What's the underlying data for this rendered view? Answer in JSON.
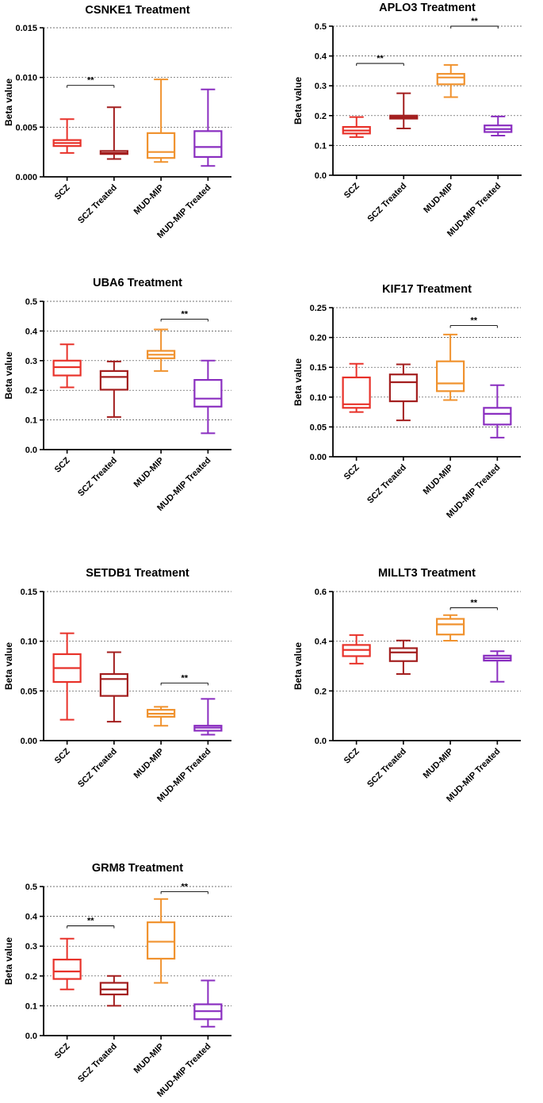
{
  "chart_data": [
    {
      "type": "boxplot",
      "title": "CSNKE1 Treatment",
      "ylabel": "Beta value",
      "ylim": [
        0,
        0.015
      ],
      "yticks": [
        "0.000",
        "0.005",
        "0.010",
        "0.015"
      ],
      "categories": [
        "SCZ",
        "SCZ Treated",
        "MUD-MIP",
        "MUD-MIP Treated"
      ],
      "colors": [
        "#e8322a",
        "#a31e1e",
        "#f0922e",
        "#8a2ec0"
      ],
      "boxes": [
        {
          "min": 0.0024,
          "q1": 0.0031,
          "median": 0.0034,
          "q3": 0.0037,
          "max": 0.0058
        },
        {
          "min": 0.0018,
          "q1": 0.0023,
          "median": 0.0024,
          "q3": 0.0026,
          "max": 0.007
        },
        {
          "min": 0.0015,
          "q1": 0.0019,
          "median": 0.0025,
          "q3": 0.0044,
          "max": 0.0098
        },
        {
          "min": 0.0011,
          "q1": 0.002,
          "median": 0.003,
          "q3": 0.0046,
          "max": 0.0088
        }
      ],
      "significance": [
        {
          "from": 0,
          "to": 1,
          "label": "**",
          "at": 0.0092
        }
      ]
    },
    {
      "type": "boxplot",
      "title": "APLO3 Treatment",
      "ylabel": "Beta value",
      "ylim": [
        0,
        0.5
      ],
      "yticks": [
        "0.0",
        "0.1",
        "0.2",
        "0.3",
        "0.4",
        "0.5"
      ],
      "categories": [
        "SCZ",
        "SCZ Treated",
        "MUD-MIP",
        "MUD-MIP Treated"
      ],
      "colors": [
        "#e8322a",
        "#a31e1e",
        "#f0922e",
        "#8a2ec0"
      ],
      "boxes": [
        {
          "min": 0.128,
          "q1": 0.14,
          "median": 0.15,
          "q3": 0.162,
          "max": 0.195
        },
        {
          "min": 0.157,
          "q1": 0.19,
          "median": 0.195,
          "q3": 0.2,
          "max": 0.275
        },
        {
          "min": 0.262,
          "q1": 0.305,
          "median": 0.328,
          "q3": 0.34,
          "max": 0.37
        },
        {
          "min": 0.133,
          "q1": 0.145,
          "median": 0.155,
          "q3": 0.167,
          "max": 0.197
        }
      ],
      "significance": [
        {
          "from": 0,
          "to": 1,
          "label": "**",
          "at": 0.375
        },
        {
          "from": 2,
          "to": 3,
          "label": "**",
          "at": 0.5
        }
      ]
    },
    {
      "type": "boxplot",
      "title": "UBA6 Treatment",
      "ylabel": "Beta value",
      "ylim": [
        0,
        0.5
      ],
      "yticks": [
        "0.0",
        "0.1",
        "0.2",
        "0.3",
        "0.4",
        "0.5"
      ],
      "categories": [
        "SCZ",
        "SCZ Treated",
        "MUD-MIP",
        "MUD-MIP Treated"
      ],
      "colors": [
        "#e8322a",
        "#a31e1e",
        "#f0922e",
        "#8a2ec0"
      ],
      "boxes": [
        {
          "min": 0.21,
          "q1": 0.25,
          "median": 0.278,
          "q3": 0.3,
          "max": 0.355
        },
        {
          "min": 0.11,
          "q1": 0.202,
          "median": 0.245,
          "q3": 0.265,
          "max": 0.297
        },
        {
          "min": 0.265,
          "q1": 0.308,
          "median": 0.32,
          "q3": 0.333,
          "max": 0.405
        },
        {
          "min": 0.055,
          "q1": 0.145,
          "median": 0.172,
          "q3": 0.235,
          "max": 0.3
        }
      ],
      "significance": [
        {
          "from": 2,
          "to": 3,
          "label": "**",
          "at": 0.44
        }
      ]
    },
    {
      "type": "boxplot",
      "title": "KIF17 Treatment",
      "ylabel": "Beta value",
      "ylim": [
        0,
        0.25
      ],
      "yticks": [
        "0.00",
        "0.05",
        "0.10",
        "0.15",
        "0.20",
        "0.25"
      ],
      "categories": [
        "SCZ",
        "SCZ Treated",
        "MUD-MIP",
        "MUD-MIP Treated"
      ],
      "colors": [
        "#e8322a",
        "#a31e1e",
        "#f0922e",
        "#8a2ec0"
      ],
      "boxes": [
        {
          "min": 0.075,
          "q1": 0.082,
          "median": 0.088,
          "q3": 0.133,
          "max": 0.156
        },
        {
          "min": 0.061,
          "q1": 0.093,
          "median": 0.125,
          "q3": 0.138,
          "max": 0.155
        },
        {
          "min": 0.095,
          "q1": 0.11,
          "median": 0.123,
          "q3": 0.16,
          "max": 0.205
        },
        {
          "min": 0.032,
          "q1": 0.054,
          "median": 0.072,
          "q3": 0.082,
          "max": 0.12
        }
      ],
      "significance": [
        {
          "from": 2,
          "to": 3,
          "label": "**",
          "at": 0.22
        }
      ]
    },
    {
      "type": "boxplot",
      "title": "SETDB1 Treatment",
      "ylabel": "Beta value",
      "ylim": [
        0,
        0.15
      ],
      "yticks": [
        "0.00",
        "0.05",
        "0.10",
        "0.15"
      ],
      "categories": [
        "SCZ",
        "SCZ Treated",
        "MUD-MIP",
        "MUD-MIP Treated"
      ],
      "colors": [
        "#e8322a",
        "#a31e1e",
        "#f0922e",
        "#8a2ec0"
      ],
      "boxes": [
        {
          "min": 0.021,
          "q1": 0.059,
          "median": 0.073,
          "q3": 0.087,
          "max": 0.108
        },
        {
          "min": 0.019,
          "q1": 0.045,
          "median": 0.062,
          "q3": 0.067,
          "max": 0.089
        },
        {
          "min": 0.015,
          "q1": 0.024,
          "median": 0.027,
          "q3": 0.031,
          "max": 0.034
        },
        {
          "min": 0.006,
          "q1": 0.01,
          "median": 0.013,
          "q3": 0.015,
          "max": 0.042
        }
      ],
      "significance": [
        {
          "from": 2,
          "to": 3,
          "label": "**",
          "at": 0.058
        }
      ]
    },
    {
      "type": "boxplot",
      "title": "MILLT3 Treatment",
      "ylabel": "Beta value",
      "ylim": [
        0,
        0.6
      ],
      "yticks": [
        "0.0",
        "0.2",
        "0.4",
        "0.6"
      ],
      "categories": [
        "SCZ",
        "SCZ Treated",
        "MUD-MIP",
        "MUD-MIP Treated"
      ],
      "colors": [
        "#e8322a",
        "#a31e1e",
        "#f0922e",
        "#8a2ec0"
      ],
      "boxes": [
        {
          "min": 0.31,
          "q1": 0.34,
          "median": 0.365,
          "q3": 0.385,
          "max": 0.425
        },
        {
          "min": 0.268,
          "q1": 0.32,
          "median": 0.355,
          "q3": 0.372,
          "max": 0.403
        },
        {
          "min": 0.402,
          "q1": 0.427,
          "median": 0.468,
          "q3": 0.49,
          "max": 0.505
        },
        {
          "min": 0.237,
          "q1": 0.322,
          "median": 0.332,
          "q3": 0.342,
          "max": 0.36
        }
      ],
      "significance": [
        {
          "from": 2,
          "to": 3,
          "label": "**",
          "at": 0.535
        }
      ]
    },
    {
      "type": "boxplot",
      "title": "GRM8 Treatment",
      "ylabel": "Beta value",
      "ylim": [
        0,
        0.5
      ],
      "yticks": [
        "0.0",
        "0.1",
        "0.2",
        "0.3",
        "0.4",
        "0.5"
      ],
      "categories": [
        "SCZ",
        "SCZ Treated",
        "MUD-MIP",
        "MUD-MIP Treated"
      ],
      "colors": [
        "#e8322a",
        "#a31e1e",
        "#f0922e",
        "#8a2ec0"
      ],
      "boxes": [
        {
          "min": 0.155,
          "q1": 0.19,
          "median": 0.215,
          "q3": 0.255,
          "max": 0.325
        },
        {
          "min": 0.1,
          "q1": 0.138,
          "median": 0.155,
          "q3": 0.177,
          "max": 0.2
        },
        {
          "min": 0.177,
          "q1": 0.258,
          "median": 0.315,
          "q3": 0.38,
          "max": 0.458
        },
        {
          "min": 0.03,
          "q1": 0.055,
          "median": 0.082,
          "q3": 0.105,
          "max": 0.185
        }
      ],
      "significance": [
        {
          "from": 0,
          "to": 1,
          "label": "**",
          "at": 0.368
        },
        {
          "from": 2,
          "to": 3,
          "label": "**",
          "at": 0.483
        }
      ]
    }
  ]
}
